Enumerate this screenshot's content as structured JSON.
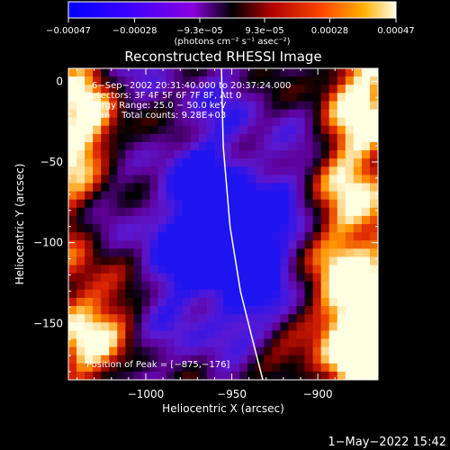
{
  "chart_data": {
    "type": "heatmap",
    "title": "Reconstructed RHESSI Image",
    "xlabel": "Heliocentric X (arcsec)",
    "ylabel": "Heliocentric Y (arcsec)",
    "xlim": [
      -1045,
      -865
    ],
    "ylim": [
      -185,
      8
    ],
    "x_ticks": [
      -1000,
      -950,
      -900
    ],
    "x_tick_labels": [
      "−1000",
      "−950",
      "−900"
    ],
    "y_ticks": [
      0,
      -50,
      -100,
      -150
    ],
    "y_tick_labels": [
      "0",
      "−50",
      "−100",
      "−150"
    ],
    "colorbar": {
      "range": [
        -0.00047,
        0.00047
      ],
      "ticks": [
        -0.00047,
        -0.00028,
        -9.3e-05,
        9.3e-05,
        0.00028,
        0.00047
      ],
      "tick_labels": [
        "−0.00047",
        "−0.00028",
        "−9.3e−05",
        "9.3e−05",
        "0.00028",
        "0.00047"
      ],
      "units_label": "(photons cm⁻² s⁻¹ asec⁻²)"
    },
    "info_lines": [
      "6−Sep−2002 20:31:40.000 to 20:37:24.000",
      "Detectors: 3F 4F 5F 6F 7F 8F, Att 0",
      "Energy Range: 25.0 − 50.0 keV",
      "Clean    Total counts: 9.28E+03"
    ],
    "peak_label": "Position of Peak = [−875,−176]",
    "peak_position": [
      -875,
      -176
    ],
    "limb_line": [
      [
        -956,
        8
      ],
      [
        -955,
        -40
      ],
      [
        -951,
        -90
      ],
      [
        -945,
        -130
      ],
      [
        -938,
        -160
      ],
      [
        -932,
        -185
      ]
    ],
    "grid": false,
    "legend": "none"
  },
  "timestamp": "1−May−2022 15:42"
}
